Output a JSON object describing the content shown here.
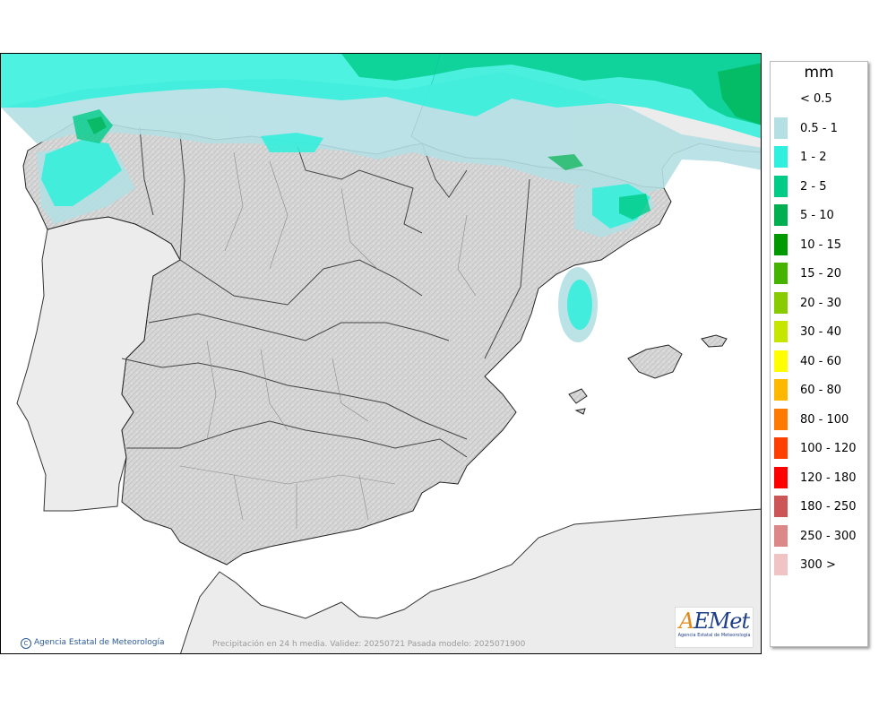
{
  "legend": {
    "unit": "mm",
    "items": [
      {
        "label": "< 0.5",
        "color": "#ffffff"
      },
      {
        "label": "0.5 - 1",
        "color": "#b4dfe3"
      },
      {
        "label": "1 - 2",
        "color": "#2ef0dc"
      },
      {
        "label": "2 - 5",
        "color": "#00cc88"
      },
      {
        "label": "5 - 10",
        "color": "#00b050"
      },
      {
        "label": "10 - 15",
        "color": "#009a00"
      },
      {
        "label": "15 - 20",
        "color": "#44b400"
      },
      {
        "label": "20 - 30",
        "color": "#88cc00"
      },
      {
        "label": "30 - 40",
        "color": "#c6e600"
      },
      {
        "label": "40 - 60",
        "color": "#ffff00"
      },
      {
        "label": "60 - 80",
        "color": "#ffb800"
      },
      {
        "label": "80 - 100",
        "color": "#ff7a00"
      },
      {
        "label": "100 - 120",
        "color": "#ff4000"
      },
      {
        "label": "120 - 180",
        "color": "#ff0000"
      },
      {
        "label": "180 - 250",
        "color": "#cc5555"
      },
      {
        "label": "250 - 300",
        "color": "#dd8888"
      },
      {
        "label": "300 >",
        "color": "#f0c4c4"
      }
    ]
  },
  "footer": {
    "copyright_symbol": "C",
    "copyright": "Agencia Estatal de Meteorología",
    "caption": "Precipitación en 24 h media. Validez: 20250721 Pasada modelo: 2025071900"
  },
  "logo": {
    "word": "AEMet",
    "subtitle": "Agencia Estatal de Meteorología"
  },
  "map": {
    "sea_color": "#ffffff",
    "land_color": "#d8d8d8",
    "foreign_land_color": "#ececec"
  }
}
